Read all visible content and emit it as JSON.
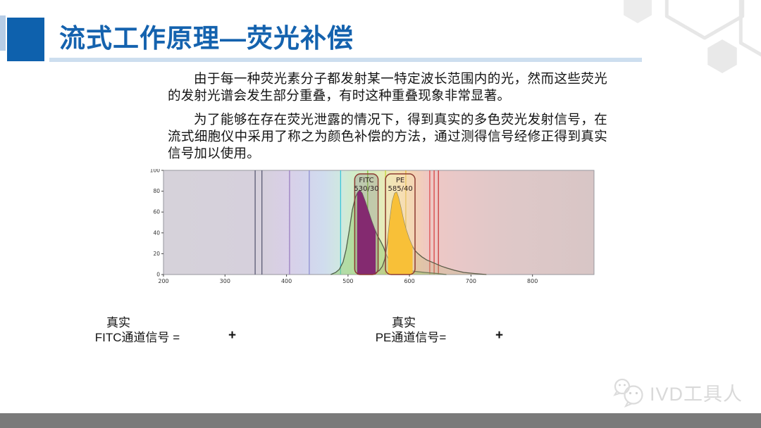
{
  "slide": {
    "title": "流式工作原理—荧光补偿",
    "paragraphs": [
      "由于每一种荧光素分子都发射某一特定波长范围内的光，然而这些荧光的发射光谱会发生部分重叠，有时这种重叠现象非常显著。",
      "为了能够在存在荧光泄露的情况下，得到真实的多色荧光发射信号，在流式细胞仪中采用了称之为颜色补偿的方法，通过测得信号经修正得到真实信号加以使用。"
    ],
    "formulas": {
      "left": {
        "line1": "真实",
        "line2": "FITC通道信号 =",
        "plus": "+"
      },
      "right": {
        "line1": "真实",
        "line2": "PE通道信号=",
        "plus": "+"
      }
    },
    "watermark": "IVD工具人",
    "colors": {
      "accent_blue": "#0e61ad",
      "accent_light": "#b7cde6",
      "title_blue": "#1462ae",
      "underline_blue": "#cddeef",
      "bar_gray": "#7a7a7a",
      "watermark_gray": "#d9d9d9"
    }
  },
  "chart_data": {
    "type": "area",
    "title": "",
    "xlabel": "",
    "ylabel": "",
    "xlim": [
      200,
      900
    ],
    "ylim": [
      0,
      100
    ],
    "x_ticks": [
      200,
      300,
      400,
      500,
      600,
      700,
      800
    ],
    "y_ticks": [
      0,
      20,
      40,
      60,
      80,
      100
    ],
    "grid": false,
    "legend": false,
    "background_spectrum": [
      [
        200,
        "#d6d2da"
      ],
      [
        360,
        "#d6d0dc"
      ],
      [
        400,
        "#d9cfe7"
      ],
      [
        430,
        "#d4d4ec"
      ],
      [
        460,
        "#d0dcee"
      ],
      [
        488,
        "#cfe8e0"
      ],
      [
        510,
        "#d2ecc8"
      ],
      [
        545,
        "#dcedbe"
      ],
      [
        565,
        "#eeeab8"
      ],
      [
        585,
        "#f6e0b0"
      ],
      [
        605,
        "#f4d2b2"
      ],
      [
        630,
        "#efc8c4"
      ],
      [
        680,
        "#e8c8c8"
      ],
      [
        760,
        "#dfc8c8"
      ],
      [
        900,
        "#d8c6c6"
      ]
    ],
    "laser_lines": [
      {
        "nm": 349,
        "color": "#5a5a74"
      },
      {
        "nm": 360,
        "color": "#5a5a74"
      },
      {
        "nm": 405,
        "color": "#9b7fc0"
      },
      {
        "nm": 437,
        "color": "#8e8ed2"
      },
      {
        "nm": 488,
        "color": "#3cc6d8"
      },
      {
        "nm": 532,
        "color": "#86c83c"
      },
      {
        "nm": 561,
        "color": "#c2d438"
      },
      {
        "nm": 594,
        "color": "#e2b83c"
      },
      {
        "nm": 633,
        "color": "#e05050"
      },
      {
        "nm": 640,
        "color": "#d84444"
      },
      {
        "nm": 647,
        "color": "#cc3c3c"
      }
    ],
    "series": [
      {
        "name": "FITC emission",
        "line_color": "#4f5f49",
        "fill_color": "rgba(150,205,115,0.50)",
        "points": [
          [
            472,
            0
          ],
          [
            480,
            2
          ],
          [
            486,
            5
          ],
          [
            492,
            12
          ],
          [
            497,
            24
          ],
          [
            502,
            42
          ],
          [
            507,
            62
          ],
          [
            512,
            74
          ],
          [
            516,
            79
          ],
          [
            519,
            81
          ],
          [
            523,
            78
          ],
          [
            528,
            70
          ],
          [
            533,
            61
          ],
          [
            538,
            52
          ],
          [
            543,
            44
          ],
          [
            548,
            37
          ],
          [
            553,
            32
          ],
          [
            558,
            26
          ],
          [
            563,
            18
          ],
          [
            568,
            13
          ],
          [
            574,
            10
          ],
          [
            580,
            8
          ],
          [
            588,
            6
          ],
          [
            598,
            4
          ],
          [
            610,
            3
          ],
          [
            625,
            2
          ],
          [
            645,
            1
          ],
          [
            660,
            0
          ]
        ]
      },
      {
        "name": "PE emission",
        "line_color": "#5c5c48",
        "fill_color": "rgba(190,180,120,0.30)",
        "points": [
          [
            538,
            0
          ],
          [
            546,
            2
          ],
          [
            551,
            4
          ],
          [
            556,
            8
          ],
          [
            560,
            15
          ],
          [
            564,
            30
          ],
          [
            568,
            52
          ],
          [
            572,
            70
          ],
          [
            576,
            78
          ],
          [
            579,
            79
          ],
          [
            582,
            74
          ],
          [
            586,
            64
          ],
          [
            590,
            53
          ],
          [
            594,
            44
          ],
          [
            599,
            35
          ],
          [
            604,
            28
          ],
          [
            609,
            23
          ],
          [
            614,
            20
          ],
          [
            620,
            17
          ],
          [
            628,
            14
          ],
          [
            636,
            12
          ],
          [
            644,
            10
          ],
          [
            652,
            8
          ],
          [
            662,
            6
          ],
          [
            674,
            4
          ],
          [
            688,
            2
          ],
          [
            705,
            1
          ],
          [
            725,
            0
          ]
        ]
      }
    ],
    "filters": [
      {
        "name": "FITC",
        "label": [
          "FITC",
          "530/30"
        ],
        "band_nm": [
          515,
          545
        ],
        "series": 0,
        "fill": "#85106e",
        "box_fill": "rgba(130,110,120,0.28)",
        "box_stroke": "#8c3a32",
        "label_color": "#2c1f1f"
      },
      {
        "name": "PE",
        "label": [
          "PE",
          "585/40"
        ],
        "band_nm": [
          565,
          605
        ],
        "series": 1,
        "fill": "#f9b200",
        "box_fill": "rgba(245,225,185,0.30)",
        "box_stroke": "#8c3a32",
        "label_color": "#2c1f1f"
      }
    ]
  }
}
